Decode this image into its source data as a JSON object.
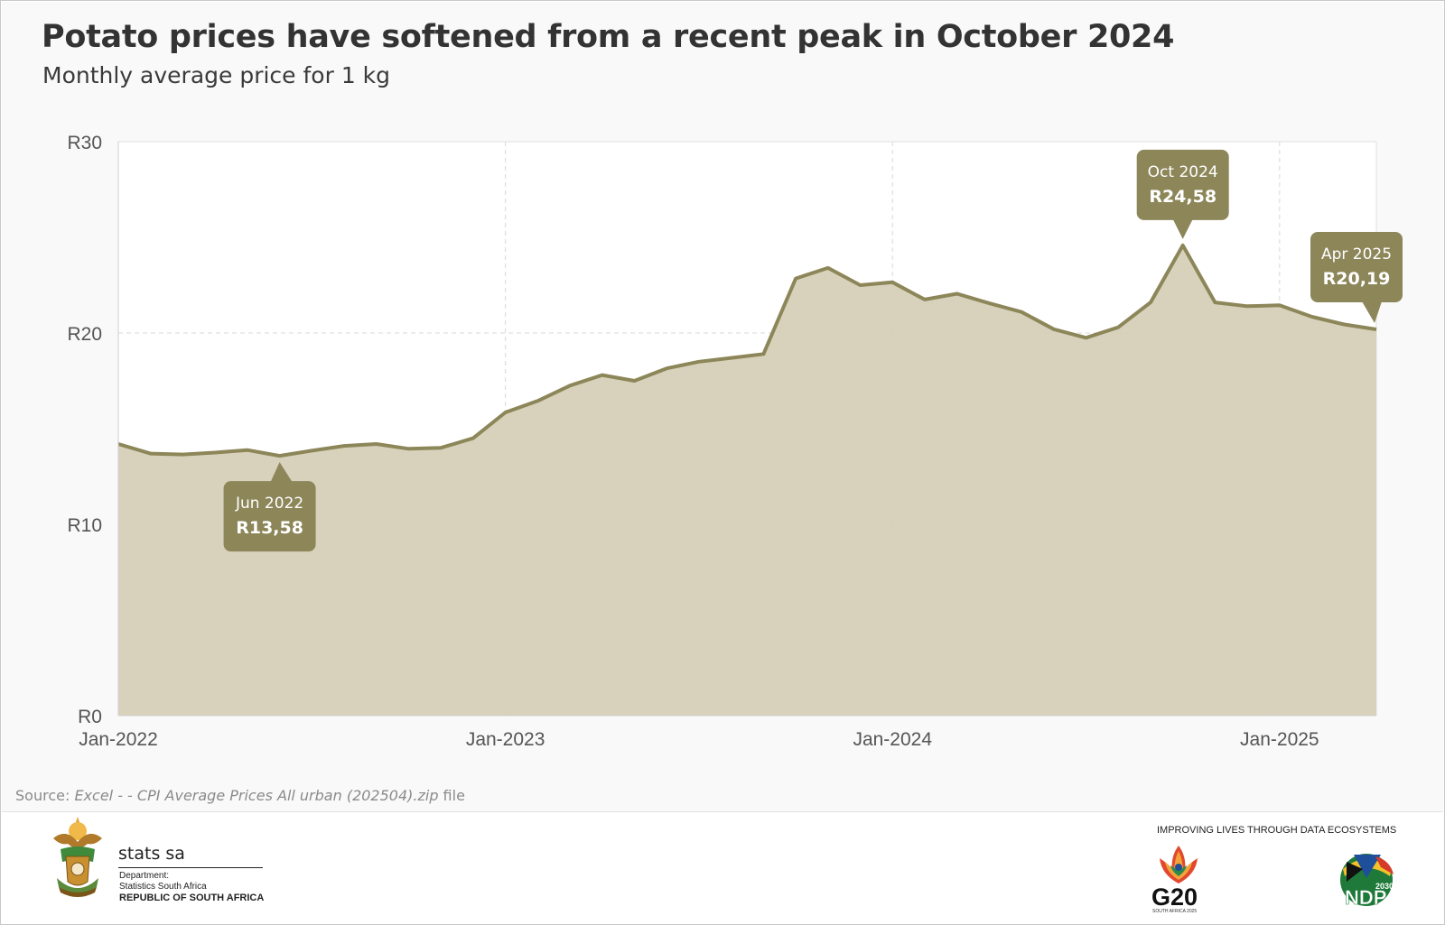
{
  "title": "Potato prices have softened from a recent peak in October 2024",
  "subtitle": "Monthly average price for 1 kg",
  "source": {
    "prefix": "Source: ",
    "italic": "Excel - - CPI Average Prices All urban (202504).zip",
    "suffix": " file"
  },
  "chart_data": {
    "type": "area",
    "title": "Potato prices have softened from a recent peak in October 2024",
    "subtitle": "Monthly average price for 1 kg",
    "xlabel": "",
    "ylabel": "",
    "ylim": [
      0,
      30
    ],
    "yticks": [
      0,
      10,
      20,
      30
    ],
    "ytick_labels": [
      "R0",
      "R10",
      "R20",
      "R30"
    ],
    "xtick_labels": [
      "Jan-2022",
      "Jan-2023",
      "Jan-2024",
      "Jan-2025"
    ],
    "grid": true,
    "legend": "none",
    "colors": {
      "line": "#8c8659",
      "fill": "#d6d0b8",
      "callout": "#8c8659",
      "panel": "#f9f9f9"
    },
    "x": [
      "2022-01",
      "2022-02",
      "2022-03",
      "2022-04",
      "2022-05",
      "2022-06",
      "2022-07",
      "2022-08",
      "2022-09",
      "2022-10",
      "2022-11",
      "2022-12",
      "2023-01",
      "2023-02",
      "2023-03",
      "2023-04",
      "2023-05",
      "2023-06",
      "2023-07",
      "2023-08",
      "2023-09",
      "2023-10",
      "2023-11",
      "2023-12",
      "2024-01",
      "2024-02",
      "2024-03",
      "2024-04",
      "2024-05",
      "2024-06",
      "2024-07",
      "2024-08",
      "2024-09",
      "2024-10",
      "2024-11",
      "2024-12",
      "2025-01",
      "2025-02",
      "2025-03",
      "2025-04"
    ],
    "series": [
      {
        "values": [
          14.2,
          13.7,
          13.65,
          13.75,
          13.88,
          13.58,
          13.85,
          14.1,
          14.2,
          13.95,
          14.0,
          14.5,
          15.85,
          16.45,
          17.25,
          17.8,
          17.5,
          18.15,
          18.5,
          18.7,
          18.9,
          22.85,
          23.4,
          22.5,
          22.65,
          21.75,
          22.05,
          21.55,
          21.1,
          20.2,
          19.75,
          20.3,
          21.6,
          24.58,
          21.6,
          21.4,
          21.45,
          20.85,
          20.45,
          20.19
        ]
      }
    ],
    "annotations": [
      {
        "x": "2022-06",
        "label": "Jun 2022",
        "value": "R13,58",
        "position": "below"
      },
      {
        "x": "2024-10",
        "label": "Oct 2024",
        "value": "R24,58",
        "position": "above"
      },
      {
        "x": "2025-04",
        "label": "Apr 2025",
        "value": "R20,19",
        "position": "above-left"
      }
    ]
  },
  "footer": {
    "brand": "stats sa",
    "department_lines": [
      "Department:",
      "Statistics South Africa"
    ],
    "republic": "REPUBLIC OF SOUTH AFRICA",
    "tagline": "IMPROVING LIVES THROUGH DATA ECOSYSTEMS",
    "g20": "G20",
    "g20_sub": "SOUTH AFRICA 2025",
    "ndp_year": "2030",
    "ndp": "NDP",
    "icons": [
      "coat-of-arms-icon",
      "g20-flower-icon",
      "ndp-flag-icon"
    ]
  }
}
